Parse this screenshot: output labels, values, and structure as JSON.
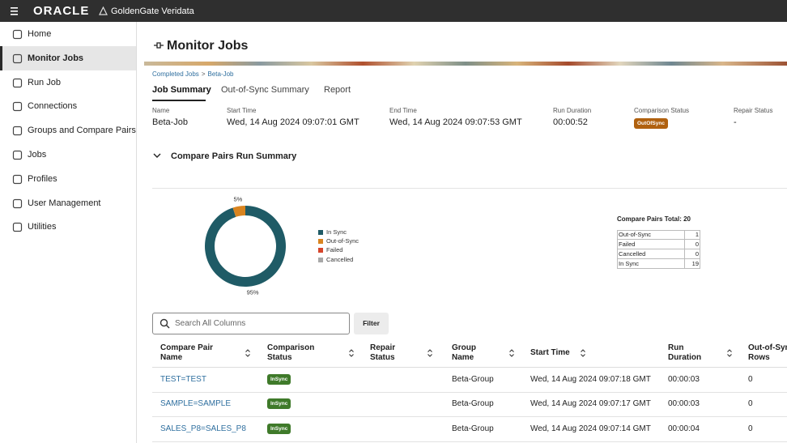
{
  "topbar": {
    "brand": "ORACLE",
    "product": "GoldenGate Veridata"
  },
  "sidebar": {
    "items": [
      "Home",
      "Monitor Jobs",
      "Run Job",
      "Connections",
      "Groups and Compare Pairs",
      "Jobs",
      "Profiles",
      "User Management",
      "Utilities"
    ],
    "active": 1
  },
  "page": {
    "title": "Monitor Jobs",
    "breadcrumb": {
      "items": [
        "Completed Jobs",
        "Beta-Job"
      ],
      "separator": ">"
    },
    "tabs": [
      "Job Summary",
      "Out-of-Sync Summary",
      "Report"
    ],
    "active_tab": 0
  },
  "summary": [
    {
      "label": "Name",
      "value": "Beta-Job"
    },
    {
      "label": "Start Time",
      "value": "Wed, 14 Aug 2024 09:07:01 GMT"
    },
    {
      "label": "End Time",
      "value": "Wed, 14 Aug 2024 09:07:53 GMT"
    },
    {
      "label": "Run Duration",
      "value": "00:00:52"
    },
    {
      "label": "Comparison Status",
      "value": "OutOfSync"
    },
    {
      "label": "Repair Status",
      "value": "-"
    }
  ],
  "section_title": "Compare Pairs Run Summary",
  "donut": {
    "type": "pie",
    "categories": [
      "In Sync",
      "Out-of-Sync",
      "Failed",
      "Cancelled"
    ],
    "values": [
      95,
      5,
      0,
      0
    ],
    "value_labels": [
      "95%",
      "5%",
      null,
      null
    ],
    "colors": [
      "#1f5b66",
      "#d9841f",
      "#d6452b",
      "#a8a8a8"
    ]
  },
  "totals": {
    "title": "Compare Pairs Total: 20",
    "rows": [
      [
        "Out-of-Sync",
        "1"
      ],
      [
        "Failed",
        "0"
      ],
      [
        "Cancelled",
        "0"
      ],
      [
        "In Sync",
        "19"
      ]
    ]
  },
  "search": {
    "placeholder": "Search All Columns",
    "button": "Filter"
  },
  "table": {
    "headers": [
      "Compare Pair Name",
      "Comparison Status",
      "Repair Status",
      "Group Name",
      "Start Time",
      "Run Duration",
      "Out-of-Sync Rows"
    ],
    "rows": [
      {
        "name": "TEST=TEST",
        "status": "InSync",
        "group": "Beta-Group",
        "start": "Wed, 14 Aug 2024 09:07:18 GMT",
        "duration": "00:00:03",
        "oos": "0"
      },
      {
        "name": "SAMPLE=SAMPLE",
        "status": "InSync",
        "group": "Beta-Group",
        "start": "Wed, 14 Aug 2024 09:07:17 GMT",
        "duration": "00:00:03",
        "oos": "0"
      },
      {
        "name": "SALES_P8=SALES_P8",
        "status": "InSync",
        "group": "Beta-Group",
        "start": "Wed, 14 Aug 2024 09:07:14 GMT",
        "duration": "00:00:04",
        "oos": "0"
      }
    ]
  }
}
